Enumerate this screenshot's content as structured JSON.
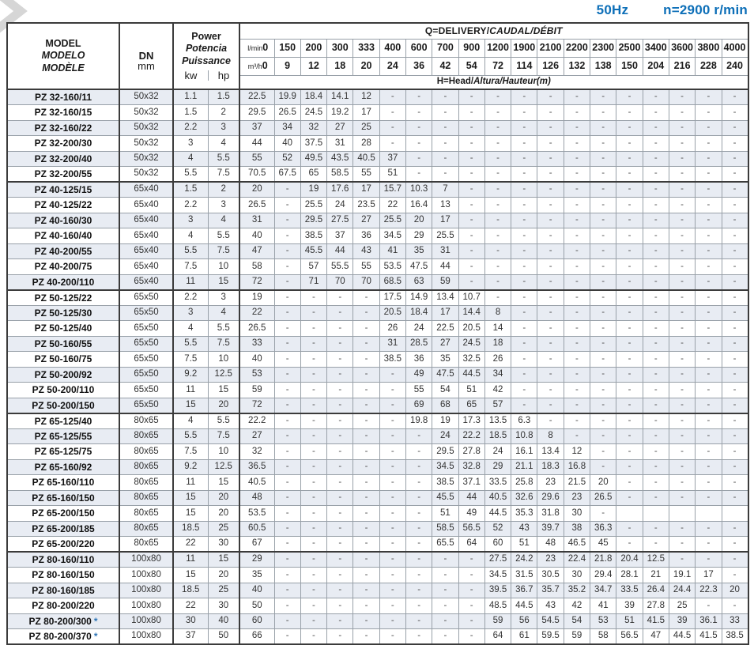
{
  "specs": {
    "frequency": "50Hz",
    "speed": "n=2900 r/min",
    "accent_color": "#0d6fb8"
  },
  "table": {
    "star_symbol": "*",
    "header": {
      "model_l1": "MODEL",
      "model_l2": "MODELO",
      "model_l3": "MODÈLE",
      "dn": "DN",
      "dn_unit": "mm",
      "power_l1": "Power",
      "power_l2": "Potencia",
      "power_l3": "Puissance",
      "kw": "kw",
      "hp": "hp",
      "q_title_plain": "Q=DELIVERY/",
      "q_title_italic": "CAUDAL/DÉBIT",
      "head_plain": "H=Head/",
      "head_italic": "Altura/Hauteur(m)",
      "lmin_label": "l/min",
      "m3h_label": "m³/h",
      "lmin": [
        "0",
        "150",
        "200",
        "300",
        "333",
        "400",
        "600",
        "700",
        "900",
        "1200",
        "1900",
        "2100",
        "2200",
        "2300",
        "2500",
        "3400",
        "3600",
        "3800",
        "4000"
      ],
      "m3h": [
        "0",
        "9",
        "12",
        "18",
        "20",
        "24",
        "36",
        "42",
        "54",
        "72",
        "114",
        "126",
        "132",
        "138",
        "150",
        "204",
        "216",
        "228",
        "240"
      ]
    },
    "rows": [
      {
        "model": "PZ 32-160/11",
        "star": false,
        "dn": "50x32",
        "kw": "1.1",
        "hp": "1.5",
        "groupEnd": false,
        "h": [
          "22.5",
          "19.9",
          "18.4",
          "14.1",
          "12",
          "-",
          "-",
          "-",
          "-",
          "-",
          "-",
          "-",
          "-",
          "-",
          "-",
          "-",
          "-",
          "-",
          "-"
        ]
      },
      {
        "model": "PZ 32-160/15",
        "star": false,
        "dn": "50x32",
        "kw": "1.5",
        "hp": "2",
        "groupEnd": false,
        "h": [
          "29.5",
          "26.5",
          "24.5",
          "19.2",
          "17",
          "-",
          "-",
          "-",
          "-",
          "-",
          "-",
          "-",
          "-",
          "-",
          "-",
          "-",
          "-",
          "-",
          "-"
        ]
      },
      {
        "model": "PZ 32-160/22",
        "star": false,
        "dn": "50x32",
        "kw": "2.2",
        "hp": "3",
        "groupEnd": false,
        "h": [
          "37",
          "34",
          "32",
          "27",
          "25",
          "-",
          "-",
          "-",
          "-",
          "-",
          "-",
          "-",
          "-",
          "-",
          "-",
          "-",
          "-",
          "-",
          "-"
        ]
      },
      {
        "model": "PZ 32-200/30",
        "star": false,
        "dn": "50x32",
        "kw": "3",
        "hp": "4",
        "groupEnd": false,
        "h": [
          "44",
          "40",
          "37.5",
          "31",
          "28",
          "-",
          "-",
          "-",
          "-",
          "-",
          "-",
          "-",
          "-",
          "-",
          "-",
          "-",
          "-",
          "-",
          "-"
        ]
      },
      {
        "model": "PZ 32-200/40",
        "star": false,
        "dn": "50x32",
        "kw": "4",
        "hp": "5.5",
        "groupEnd": false,
        "h": [
          "55",
          "52",
          "49.5",
          "43.5",
          "40.5",
          "37",
          "-",
          "-",
          "-",
          "-",
          "-",
          "-",
          "-",
          "-",
          "-",
          "-",
          "-",
          "-",
          "-"
        ]
      },
      {
        "model": "PZ 32-200/55",
        "star": false,
        "dn": "50x32",
        "kw": "5.5",
        "hp": "7.5",
        "groupEnd": true,
        "h": [
          "70.5",
          "67.5",
          "65",
          "58.5",
          "55",
          "51",
          "-",
          "-",
          "-",
          "-",
          "-",
          "-",
          "-",
          "-",
          "-",
          "-",
          "-",
          "-",
          "-"
        ]
      },
      {
        "model": "PZ 40-125/15",
        "star": false,
        "dn": "65x40",
        "kw": "1.5",
        "hp": "2",
        "groupEnd": false,
        "h": [
          "20",
          "-",
          "19",
          "17.6",
          "17",
          "15.7",
          "10.3",
          "7",
          "-",
          "-",
          "-",
          "-",
          "-",
          "-",
          "-",
          "-",
          "-",
          "-",
          "-"
        ]
      },
      {
        "model": "PZ 40-125/22",
        "star": false,
        "dn": "65x40",
        "kw": "2.2",
        "hp": "3",
        "groupEnd": false,
        "h": [
          "26.5",
          "-",
          "25.5",
          "24",
          "23.5",
          "22",
          "16.4",
          "13",
          "-",
          "-",
          "-",
          "-",
          "-",
          "-",
          "-",
          "-",
          "-",
          "-",
          "-"
        ]
      },
      {
        "model": "PZ 40-160/30",
        "star": false,
        "dn": "65x40",
        "kw": "3",
        "hp": "4",
        "groupEnd": false,
        "h": [
          "31",
          "-",
          "29.5",
          "27.5",
          "27",
          "25.5",
          "20",
          "17",
          "-",
          "-",
          "-",
          "-",
          "-",
          "-",
          "-",
          "-",
          "-",
          "-",
          "-"
        ]
      },
      {
        "model": "PZ 40-160/40",
        "star": false,
        "dn": "65x40",
        "kw": "4",
        "hp": "5.5",
        "groupEnd": false,
        "h": [
          "40",
          "-",
          "38.5",
          "37",
          "36",
          "34.5",
          "29",
          "25.5",
          "-",
          "-",
          "-",
          "-",
          "-",
          "-",
          "-",
          "-",
          "-",
          "-",
          "-"
        ]
      },
      {
        "model": "PZ 40-200/55",
        "star": false,
        "dn": "65x40",
        "kw": "5.5",
        "hp": "7.5",
        "groupEnd": false,
        "h": [
          "47",
          "-",
          "45.5",
          "44",
          "43",
          "41",
          "35",
          "31",
          "-",
          "-",
          "-",
          "-",
          "-",
          "-",
          "-",
          "-",
          "-",
          "-",
          "-"
        ]
      },
      {
        "model": "PZ 40-200/75",
        "star": false,
        "dn": "65x40",
        "kw": "7.5",
        "hp": "10",
        "groupEnd": false,
        "h": [
          "58",
          "-",
          "57",
          "55.5",
          "55",
          "53.5",
          "47.5",
          "44",
          "-",
          "-",
          "-",
          "-",
          "-",
          "-",
          "-",
          "-",
          "-",
          "-",
          "-"
        ]
      },
      {
        "model": "PZ 40-200/110",
        "star": false,
        "dn": "65x40",
        "kw": "11",
        "hp": "15",
        "groupEnd": true,
        "h": [
          "72",
          "-",
          "71",
          "70",
          "70",
          "68.5",
          "63",
          "59",
          "-",
          "-",
          "-",
          "-",
          "-",
          "-",
          "-",
          "-",
          "-",
          "-",
          "-"
        ]
      },
      {
        "model": "PZ 50-125/22",
        "star": false,
        "dn": "65x50",
        "kw": "2.2",
        "hp": "3",
        "groupEnd": false,
        "h": [
          "19",
          "-",
          "-",
          "-",
          "-",
          "17.5",
          "14.9",
          "13.4",
          "10.7",
          "-",
          "-",
          "-",
          "-",
          "-",
          "-",
          "-",
          "-",
          "-",
          "-"
        ]
      },
      {
        "model": "PZ 50-125/30",
        "star": false,
        "dn": "65x50",
        "kw": "3",
        "hp": "4",
        "groupEnd": false,
        "h": [
          "22",
          "-",
          "-",
          "-",
          "-",
          "20.5",
          "18.4",
          "17",
          "14.4",
          "8",
          "-",
          "-",
          "-",
          "-",
          "-",
          "-",
          "-",
          "-",
          "-"
        ]
      },
      {
        "model": "PZ 50-125/40",
        "star": false,
        "dn": "65x50",
        "kw": "4",
        "hp": "5.5",
        "groupEnd": false,
        "h": [
          "26.5",
          "-",
          "-",
          "-",
          "-",
          "26",
          "24",
          "22.5",
          "20.5",
          "14",
          "-",
          "-",
          "-",
          "-",
          "-",
          "-",
          "-",
          "-",
          "-"
        ]
      },
      {
        "model": "PZ 50-160/55",
        "star": false,
        "dn": "65x50",
        "kw": "5.5",
        "hp": "7.5",
        "groupEnd": false,
        "h": [
          "33",
          "-",
          "-",
          "-",
          "-",
          "31",
          "28.5",
          "27",
          "24.5",
          "18",
          "-",
          "-",
          "-",
          "-",
          "-",
          "-",
          "-",
          "-",
          "-"
        ]
      },
      {
        "model": "PZ 50-160/75",
        "star": false,
        "dn": "65x50",
        "kw": "7.5",
        "hp": "10",
        "groupEnd": false,
        "h": [
          "40",
          "-",
          "-",
          "-",
          "-",
          "38.5",
          "36",
          "35",
          "32.5",
          "26",
          "-",
          "-",
          "-",
          "-",
          "-",
          "-",
          "-",
          "-",
          "-"
        ]
      },
      {
        "model": "PZ 50-200/92",
        "star": false,
        "dn": "65x50",
        "kw": "9.2",
        "hp": "12.5",
        "groupEnd": false,
        "h": [
          "53",
          "-",
          "-",
          "-",
          "-",
          "-",
          "49",
          "47.5",
          "44.5",
          "34",
          "-",
          "-",
          "-",
          "-",
          "-",
          "-",
          "-",
          "-",
          "-"
        ]
      },
      {
        "model": "PZ 50-200/110",
        "star": false,
        "dn": "65x50",
        "kw": "11",
        "hp": "15",
        "groupEnd": false,
        "h": [
          "59",
          "-",
          "-",
          "-",
          "-",
          "-",
          "55",
          "54",
          "51",
          "42",
          "-",
          "-",
          "-",
          "-",
          "-",
          "-",
          "-",
          "-",
          "-"
        ]
      },
      {
        "model": "PZ 50-200/150",
        "star": false,
        "dn": "65x50",
        "kw": "15",
        "hp": "20",
        "groupEnd": true,
        "h": [
          "72",
          "-",
          "-",
          "-",
          "-",
          "-",
          "69",
          "68",
          "65",
          "57",
          "-",
          "-",
          "-",
          "-",
          "-",
          "-",
          "-",
          "-",
          "-"
        ]
      },
      {
        "model": "PZ 65-125/40",
        "star": false,
        "dn": "80x65",
        "kw": "4",
        "hp": "5.5",
        "groupEnd": false,
        "h": [
          "22.2",
          "-",
          "-",
          "-",
          "-",
          "-",
          "19.8",
          "19",
          "17.3",
          "13.5",
          "6.3",
          "-",
          "-",
          "-",
          "-",
          "-",
          "-",
          "-",
          "-"
        ]
      },
      {
        "model": "PZ 65-125/55",
        "star": false,
        "dn": "80x65",
        "kw": "5.5",
        "hp": "7.5",
        "groupEnd": false,
        "h": [
          "27",
          "-",
          "-",
          "-",
          "-",
          "-",
          "-",
          "24",
          "22.2",
          "18.5",
          "10.8",
          "8",
          "-",
          "-",
          "-",
          "-",
          "-",
          "-",
          "-"
        ]
      },
      {
        "model": "PZ 65-125/75",
        "star": false,
        "dn": "80x65",
        "kw": "7.5",
        "hp": "10",
        "groupEnd": false,
        "h": [
          "32",
          "-",
          "-",
          "-",
          "-",
          "-",
          "-",
          "29.5",
          "27.8",
          "24",
          "16.1",
          "13.4",
          "12",
          "-",
          "-",
          "-",
          "-",
          "-",
          "-"
        ]
      },
      {
        "model": "PZ 65-160/92",
        "star": false,
        "dn": "80x65",
        "kw": "9.2",
        "hp": "12.5",
        "groupEnd": false,
        "h": [
          "36.5",
          "-",
          "-",
          "-",
          "-",
          "-",
          "-",
          "34.5",
          "32.8",
          "29",
          "21.1",
          "18.3",
          "16.8",
          "-",
          "-",
          "-",
          "-",
          "-",
          "-"
        ]
      },
      {
        "model": "PZ 65-160/110",
        "star": false,
        "dn": "80x65",
        "kw": "11",
        "hp": "15",
        "groupEnd": false,
        "h": [
          "40.5",
          "-",
          "-",
          "-",
          "-",
          "-",
          "-",
          "38.5",
          "37.1",
          "33.5",
          "25.8",
          "23",
          "21.5",
          "20",
          "-",
          "-",
          "-",
          "-",
          "-"
        ]
      },
      {
        "model": "PZ 65-160/150",
        "star": false,
        "dn": "80x65",
        "kw": "15",
        "hp": "20",
        "groupEnd": false,
        "h": [
          "48",
          "-",
          "-",
          "-",
          "-",
          "-",
          "-",
          "45.5",
          "44",
          "40.5",
          "32.6",
          "29.6",
          "23",
          "26.5",
          "-",
          "-",
          "-",
          "-",
          "-"
        ]
      },
      {
        "model": "PZ 65-200/150",
        "star": false,
        "dn": "80x65",
        "kw": "15",
        "hp": "20",
        "groupEnd": false,
        "h": [
          "53.5",
          "-",
          "-",
          "-",
          "-",
          "-",
          "-",
          "51",
          "49",
          "44.5",
          "35.3",
          "31.8",
          "30",
          "-",
          "",
          "",
          "",
          "",
          ""
        ]
      },
      {
        "model": "PZ 65-200/185",
        "star": false,
        "dn": "80x65",
        "kw": "18.5",
        "hp": "25",
        "groupEnd": false,
        "h": [
          "60.5",
          "-",
          "-",
          "-",
          "-",
          "-",
          "-",
          "58.5",
          "56.5",
          "52",
          "43",
          "39.7",
          "38",
          "36.3",
          "-",
          "-",
          "-",
          "-",
          "-"
        ]
      },
      {
        "model": "PZ 65-200/220",
        "star": false,
        "dn": "80x65",
        "kw": "22",
        "hp": "30",
        "groupEnd": true,
        "h": [
          "67",
          "-",
          "-",
          "-",
          "-",
          "-",
          "-",
          "65.5",
          "64",
          "60",
          "51",
          "48",
          "46.5",
          "45",
          "-",
          "-",
          "-",
          "-",
          "-"
        ]
      },
      {
        "model": "PZ 80-160/110",
        "star": false,
        "dn": "100x80",
        "kw": "11",
        "hp": "15",
        "groupEnd": false,
        "h": [
          "29",
          "-",
          "-",
          "-",
          "-",
          "-",
          "-",
          "-",
          "-",
          "27.5",
          "24.2",
          "23",
          "22.4",
          "21.8",
          "20.4",
          "12.5",
          "-",
          "-",
          "-"
        ]
      },
      {
        "model": "PZ 80-160/150",
        "star": false,
        "dn": "100x80",
        "kw": "15",
        "hp": "20",
        "groupEnd": false,
        "h": [
          "35",
          "-",
          "-",
          "-",
          "-",
          "-",
          "-",
          "-",
          "-",
          "34.5",
          "31.5",
          "30.5",
          "30",
          "29.4",
          "28.1",
          "21",
          "19.1",
          "17",
          "-"
        ]
      },
      {
        "model": "PZ 80-160/185",
        "star": false,
        "dn": "100x80",
        "kw": "18.5",
        "hp": "25",
        "groupEnd": false,
        "h": [
          "40",
          "-",
          "-",
          "-",
          "-",
          "-",
          "-",
          "-",
          "-",
          "39.5",
          "36.7",
          "35.7",
          "35.2",
          "34.7",
          "33.5",
          "26.4",
          "24.4",
          "22.3",
          "20"
        ]
      },
      {
        "model": "PZ 80-200/220",
        "star": false,
        "dn": "100x80",
        "kw": "22",
        "hp": "30",
        "groupEnd": false,
        "h": [
          "50",
          "-",
          "-",
          "-",
          "-",
          "-",
          "-",
          "-",
          "-",
          "48.5",
          "44.5",
          "43",
          "42",
          "41",
          "39",
          "27.8",
          "25",
          "-",
          "-"
        ]
      },
      {
        "model": "PZ 80-200/300",
        "star": true,
        "dn": "100x80",
        "kw": "30",
        "hp": "40",
        "groupEnd": false,
        "h": [
          "60",
          "-",
          "-",
          "-",
          "-",
          "-",
          "-",
          "-",
          "-",
          "59",
          "56",
          "54.5",
          "54",
          "53",
          "51",
          "41.5",
          "39",
          "36.1",
          "33"
        ]
      },
      {
        "model": "PZ 80-200/370",
        "star": true,
        "dn": "100x80",
        "kw": "37",
        "hp": "50",
        "groupEnd": false,
        "h": [
          "66",
          "-",
          "-",
          "-",
          "-",
          "-",
          "-",
          "-",
          "-",
          "64",
          "61",
          "59.5",
          "59",
          "58",
          "56.5",
          "47",
          "44.5",
          "41.5",
          "38.5"
        ]
      }
    ]
  }
}
